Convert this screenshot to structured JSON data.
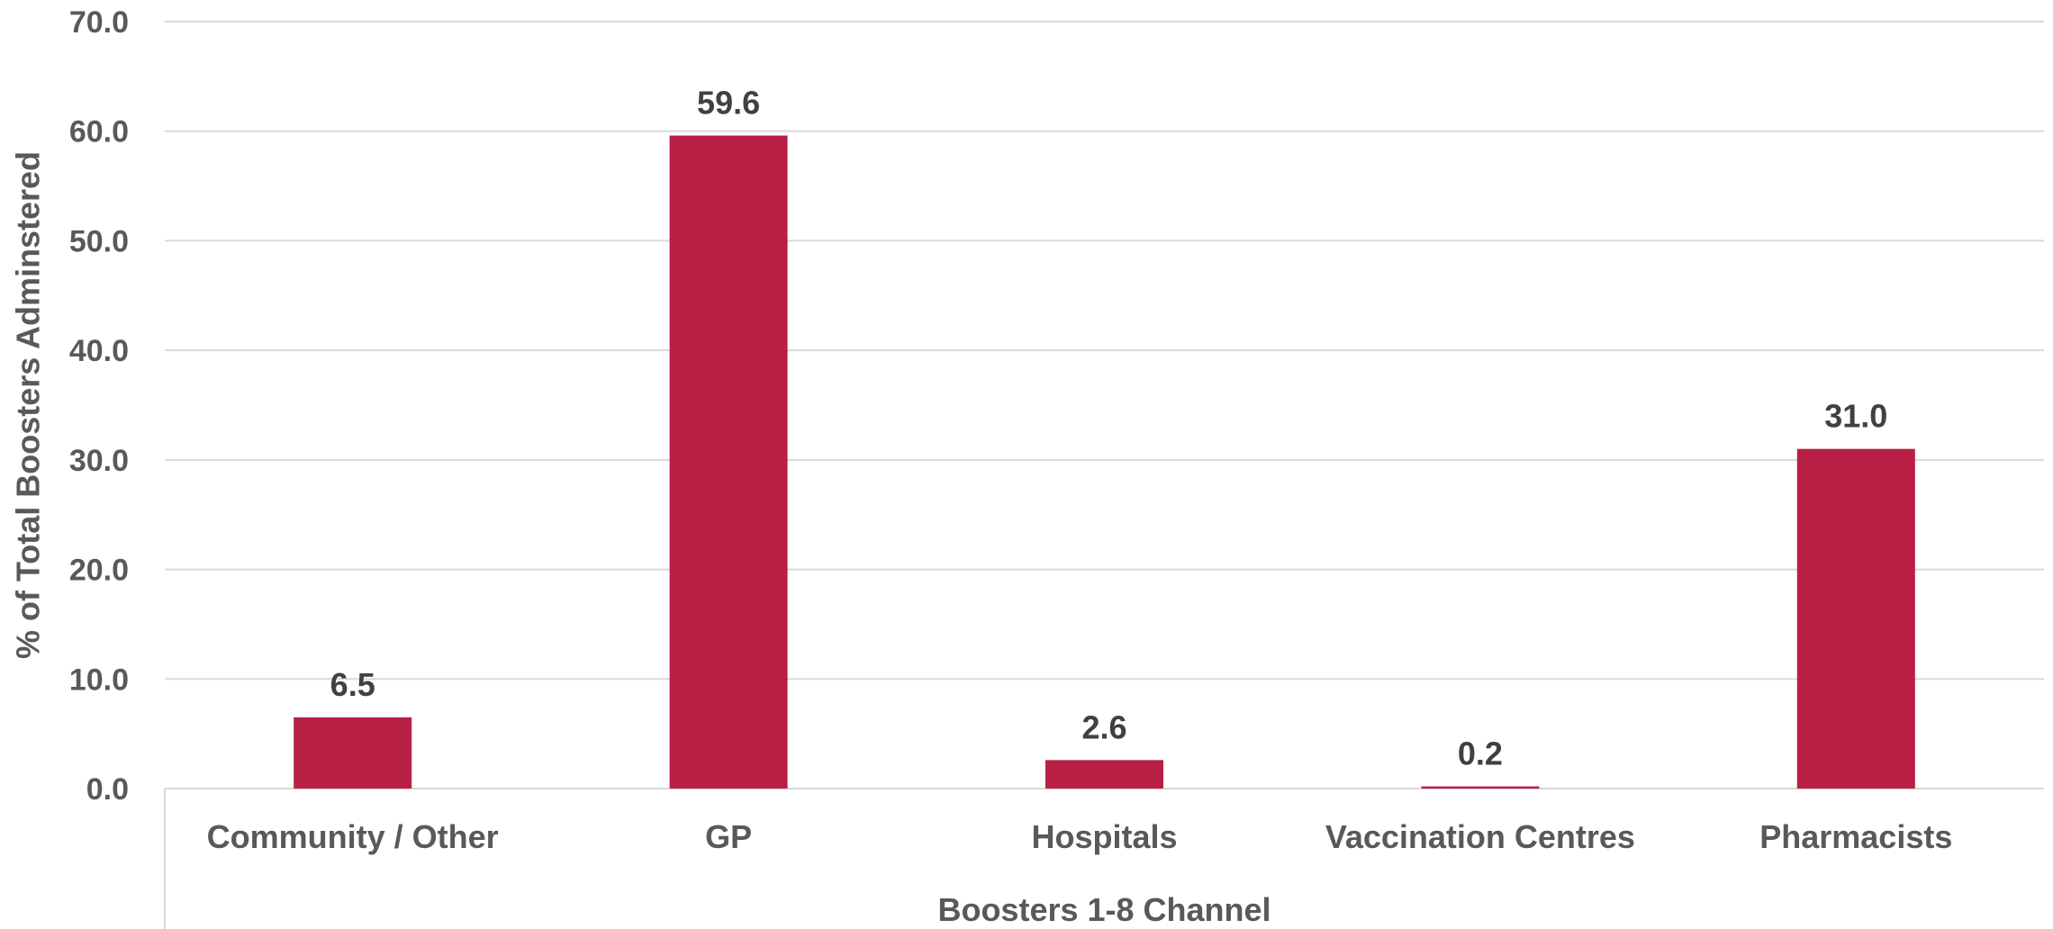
{
  "chart_data": {
    "type": "bar",
    "title": "",
    "xlabel": "Boosters 1-8 Channel",
    "ylabel": "% of Total Boosters Adminstered",
    "categories": [
      "Community / Other",
      "GP",
      "Hospitals",
      "Vaccination Centres",
      "Pharmacists"
    ],
    "values": [
      6.5,
      59.6,
      2.6,
      0.2,
      31.0
    ],
    "data_labels": [
      "6.5",
      "59.6",
      "2.6",
      "0.2",
      "31.0"
    ],
    "ylim": [
      0,
      70
    ],
    "yticks": [
      0,
      10,
      20,
      30,
      40,
      50,
      60,
      70
    ],
    "ytick_labels": [
      "0.0",
      "10.0",
      "20.0",
      "30.0",
      "40.0",
      "50.0",
      "60.0",
      "70.0"
    ],
    "grid": true,
    "legend": "none",
    "bar_color": "#b91f45",
    "grid_color": "#d9d9d9"
  }
}
